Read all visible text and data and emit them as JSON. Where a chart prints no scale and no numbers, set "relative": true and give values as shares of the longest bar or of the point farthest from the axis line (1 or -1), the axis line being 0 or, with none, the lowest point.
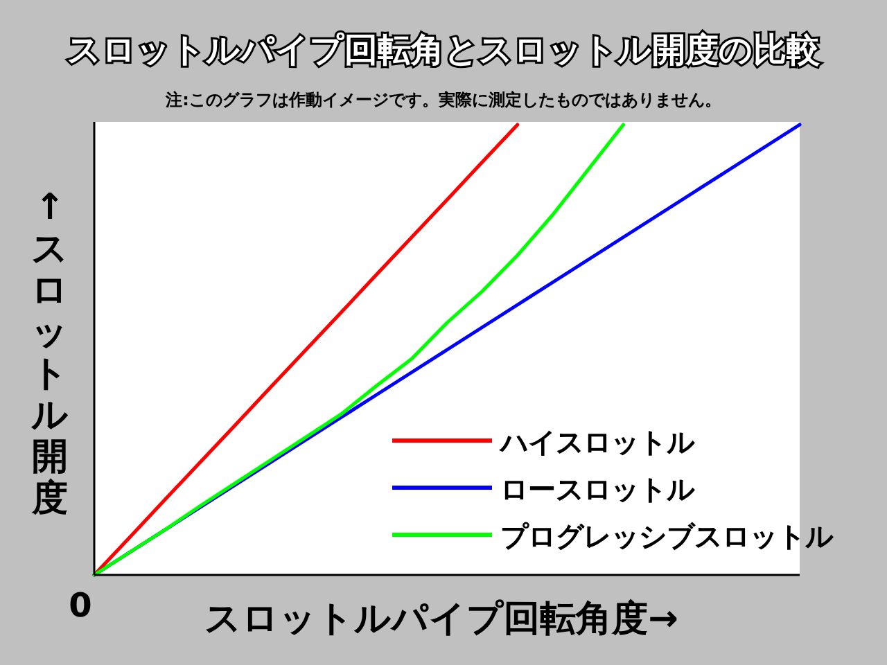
{
  "chart_data": {
    "type": "line",
    "title": "スロットルパイプ回転角とスロットル開度の比較",
    "subtitle": "注:このグラフは作動イメージです。実際に測定したものではありません。",
    "xlabel": "スロットルパイプ回転角度→",
    "ylabel": "↑スロットル開度",
    "relative": true,
    "legend": "bottom right",
    "annotations": [
      "0"
    ],
    "categories": [
      null,
      null,
      null,
      null,
      null,
      null,
      null,
      null,
      null,
      null,
      null,
      null,
      null,
      null,
      null,
      null,
      null,
      null,
      null,
      null,
      null
    ],
    "series": [
      {
        "name": "ハイスロットル",
        "color": "#ff0000",
        "values": [
          0,
          0.083,
          0.167,
          0.25,
          0.333,
          0.417,
          0.5,
          0.583,
          0.667,
          0.75,
          0.833,
          0.917,
          1,
          null,
          null,
          null,
          null,
          null,
          null,
          null,
          null
        ]
      },
      {
        "name": "ロースロットル",
        "color": "#0000ff",
        "values": [
          0,
          0.05,
          0.1,
          0.15,
          0.2,
          0.25,
          0.3,
          0.35,
          0.4,
          0.45,
          0.5,
          0.55,
          0.6,
          0.65,
          0.7,
          0.75,
          0.8,
          0.85,
          0.9,
          0.95,
          1
        ]
      },
      {
        "name": "プログレッシブスロットル",
        "color": "#00ff00",
        "values": [
          0,
          0.05,
          0.1,
          0.153,
          0.204,
          0.255,
          0.306,
          0.357,
          0.42,
          0.48,
          0.56,
          0.63,
          0.71,
          0.8,
          0.9,
          1,
          null,
          null,
          null,
          null,
          null
        ]
      }
    ]
  }
}
